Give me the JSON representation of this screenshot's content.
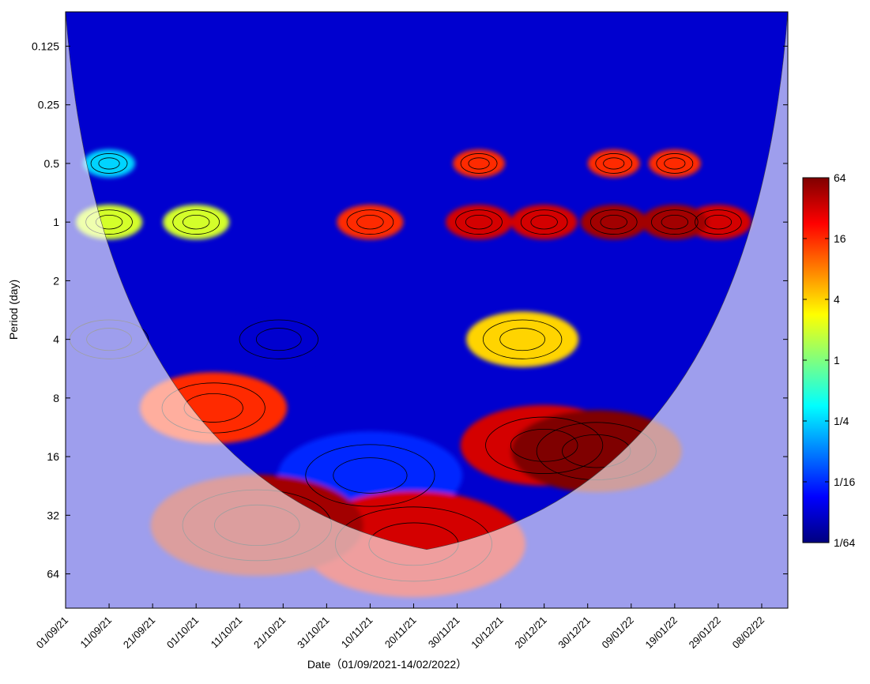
{
  "chart_data": {
    "type": "heatmap",
    "title": "",
    "xlabel": "Date（01/09/2021-14/02/2022）",
    "ylabel": "Period (day)",
    "x_tick_labels": [
      "01/09/21",
      "11/09/21",
      "21/09/21",
      "01/10/21",
      "11/10/21",
      "21/10/21",
      "31/10/21",
      "10/11/21",
      "20/11/21",
      "30/11/21",
      "10/12/21",
      "20/12/21",
      "30/12/21",
      "09/01/22",
      "19/01/22",
      "29/01/22",
      "08/02/22"
    ],
    "x_range": [
      "01/09/2021",
      "14/02/2022"
    ],
    "y_tick_labels": [
      "0.125",
      "0.25",
      "0.5",
      "1",
      "2",
      "4",
      "8",
      "16",
      "32",
      "64"
    ],
    "y_tick_values": [
      0.125,
      0.25,
      0.5,
      1,
      2,
      4,
      8,
      16,
      32,
      64
    ],
    "y_range": [
      0.0833,
      96
    ],
    "y_scale": "log2",
    "y_reversed": true,
    "colorbar": {
      "scale": "log2",
      "range": [
        0.015625,
        64
      ],
      "tick_labels": [
        "64",
        "16",
        "4",
        "1",
        "1/4",
        "1/16",
        "1/64"
      ],
      "tick_values": [
        64,
        16,
        4,
        1,
        0.25,
        0.0625,
        0.015625
      ],
      "colormap": "jet",
      "colors": [
        "#00007f",
        "#0000ff",
        "#007fff",
        "#00ffff",
        "#7fff7f",
        "#ffff00",
        "#ff7f00",
        "#ff0000",
        "#7f0000"
      ]
    },
    "cone_of_influence": "shaded outside cone",
    "significance_contour_color": "#ffff00",
    "regions": [
      {
        "period": 0.5,
        "date": "11/09/21",
        "power": 0.25
      },
      {
        "period": 1,
        "date": "11/09/21",
        "power": 2
      },
      {
        "period": 1,
        "date": "01/10/21",
        "power": 2
      },
      {
        "period": 1,
        "date": "10/11/21",
        "power": 16
      },
      {
        "period": 1,
        "date": "05/12/21",
        "power": 32
      },
      {
        "period": 1,
        "date": "20/12/21",
        "power": 32
      },
      {
        "period": 1,
        "date": "05/01/22",
        "power": 48
      },
      {
        "period": 1,
        "date": "19/01/22",
        "power": 48
      },
      {
        "period": 1,
        "date": "29/01/22",
        "power": 32
      },
      {
        "period": 0.5,
        "date": "05/12/21",
        "power": 16
      },
      {
        "period": 0.5,
        "date": "05/01/22",
        "power": 16
      },
      {
        "period": 0.5,
        "date": "19/01/22",
        "power": 16
      },
      {
        "period": 4,
        "date": "11/09/21",
        "power": 0.03
      },
      {
        "period": 4,
        "date": "20/10/21",
        "power": 0.03
      },
      {
        "period": 4,
        "date": "15/12/21",
        "power": 4
      },
      {
        "period": 9,
        "date": "05/10/21",
        "power": 16
      },
      {
        "period": 14,
        "date": "20/12/21",
        "power": 32
      },
      {
        "period": 15,
        "date": "01/01/22",
        "power": 64
      },
      {
        "period": 20,
        "date": "10/11/21",
        "power": 0.06
      },
      {
        "period": 36,
        "date": "15/10/21",
        "power": 48
      },
      {
        "period": 45,
        "date": "20/11/21",
        "power": 32
      }
    ]
  }
}
